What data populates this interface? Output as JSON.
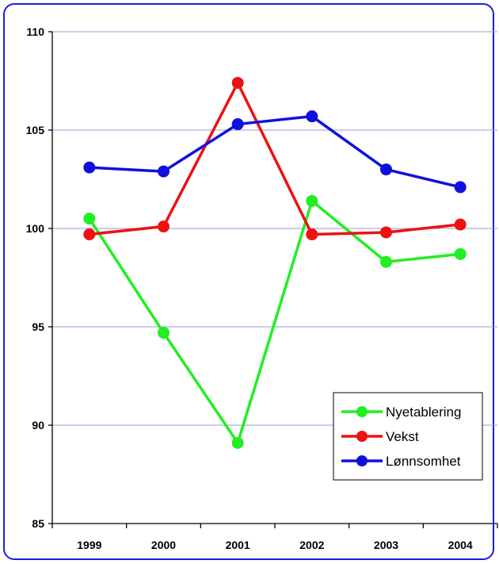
{
  "chart_data": {
    "type": "line",
    "title": "",
    "xlabel": "",
    "ylabel": "",
    "categories": [
      "1999",
      "2000",
      "2001",
      "2002",
      "2003",
      "2004"
    ],
    "ylim": [
      85,
      110
    ],
    "yticks": [
      85,
      90,
      95,
      100,
      105,
      110
    ],
    "grid": true,
    "legend_position": "bottom-right",
    "series": [
      {
        "name": "Nyetablering",
        "color": "#22ee22",
        "values": [
          100.5,
          94.7,
          89.1,
          101.4,
          98.3,
          98.7
        ]
      },
      {
        "name": "Vekst",
        "color": "#ee1111",
        "values": [
          99.7,
          100.1,
          107.4,
          99.7,
          99.8,
          100.2
        ]
      },
      {
        "name": "Lønnsomhet",
        "color": "#1010dd",
        "values": [
          103.1,
          102.9,
          105.3,
          105.7,
          103.0,
          102.1
        ]
      }
    ]
  }
}
